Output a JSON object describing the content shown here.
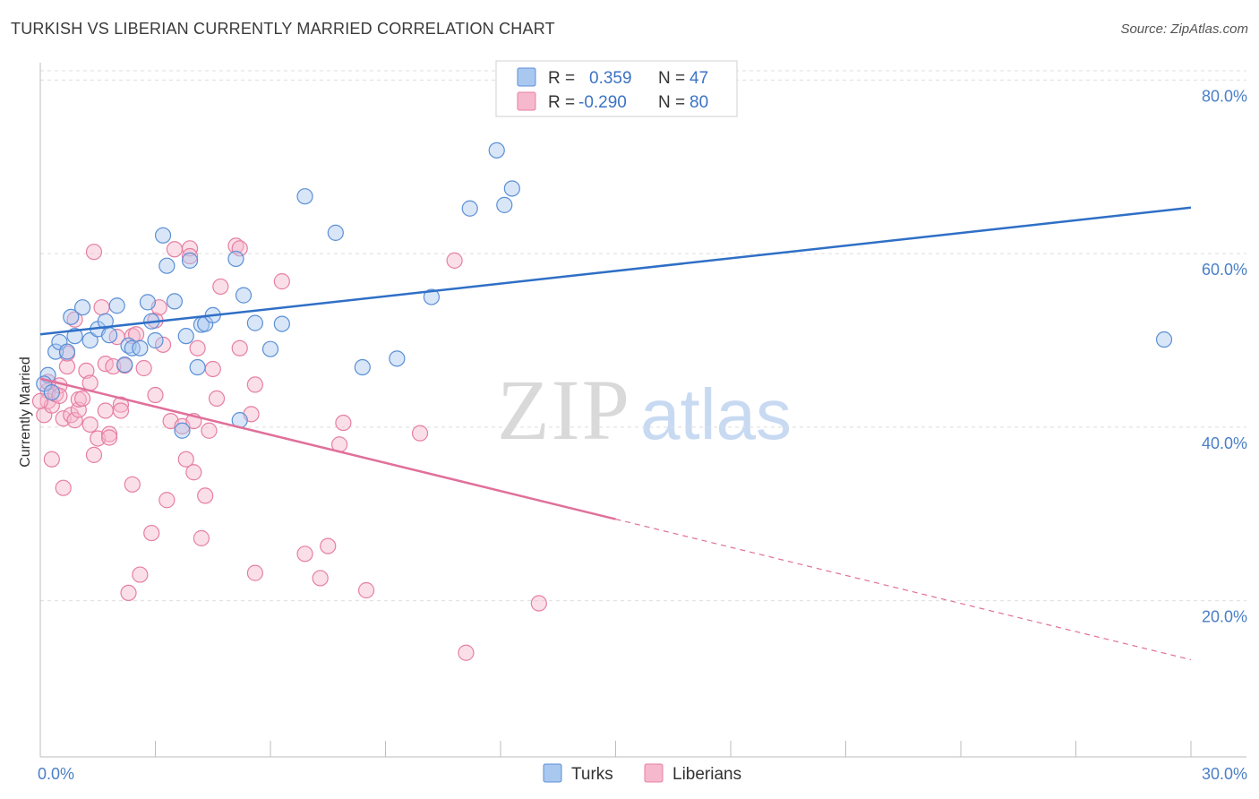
{
  "title": "TURKISH VS LIBERIAN CURRENTLY MARRIED CORRELATION CHART",
  "source": "Source: ZipAtlas.com",
  "watermark": {
    "zip": "ZIP",
    "atlas": "atlas"
  },
  "colors": {
    "turks_fill": "#a9c8f0",
    "turks_stroke": "#5b8fd6",
    "turks_line": "#2f6fc6",
    "lib_fill": "#f6b8cc",
    "lib_stroke": "#e67fa3",
    "lib_line": "#e0709a",
    "tick_color": "#4a7fc7"
  },
  "legend": {
    "rows": [
      {
        "r_label": "R =",
        "r_value": "0.359",
        "n_label": "N =",
        "n_value": "47"
      },
      {
        "r_label": "R =",
        "r_value": "-0.290",
        "n_label": "N =",
        "n_value": "80"
      }
    ]
  },
  "bottom_legend": [
    "Turks",
    "Liberians"
  ],
  "chart_data": {
    "type": "scatter",
    "title": "TURKISH VS LIBERIAN CURRENTLY MARRIED CORRELATION CHART",
    "xlabel": "",
    "ylabel": "Currently Married",
    "xlim": [
      0,
      30
    ],
    "ylim": [
      2,
      82
    ],
    "x_tick_labels": [
      "0.0%",
      "30.0%"
    ],
    "y_tick_labels": [
      "20.0%",
      "40.0%",
      "60.0%",
      "80.0%"
    ],
    "y_ticks": [
      20,
      40,
      60,
      80
    ],
    "grid": true,
    "legend_position": "top-center",
    "series": [
      {
        "name": "Turks",
        "r": 0.359,
        "n": 47,
        "trend": {
          "x": [
            0,
            30
          ],
          "y": [
            50.7,
            65.3
          ]
        },
        "points": [
          [
            0.2,
            46.0
          ],
          [
            0.4,
            48.7
          ],
          [
            0.5,
            49.8
          ],
          [
            0.7,
            48.7
          ],
          [
            0.8,
            52.7
          ],
          [
            0.9,
            50.5
          ],
          [
            1.1,
            53.8
          ],
          [
            1.3,
            50.0
          ],
          [
            1.5,
            51.3
          ],
          [
            1.7,
            52.2
          ],
          [
            1.8,
            50.6
          ],
          [
            2.0,
            54.0
          ],
          [
            2.2,
            47.2
          ],
          [
            2.3,
            49.4
          ],
          [
            2.4,
            49.1
          ],
          [
            2.6,
            49.1
          ],
          [
            2.8,
            54.4
          ],
          [
            2.9,
            52.2
          ],
          [
            3.0,
            50.0
          ],
          [
            3.2,
            62.1
          ],
          [
            3.3,
            58.6
          ],
          [
            3.5,
            54.5
          ],
          [
            3.7,
            39.6
          ],
          [
            3.8,
            50.5
          ],
          [
            3.9,
            59.2
          ],
          [
            4.1,
            46.9
          ],
          [
            4.2,
            51.8
          ],
          [
            4.3,
            51.9
          ],
          [
            4.5,
            52.9
          ],
          [
            5.1,
            59.4
          ],
          [
            5.2,
            40.8
          ],
          [
            5.3,
            55.2
          ],
          [
            5.6,
            52.0
          ],
          [
            6.0,
            49.0
          ],
          [
            6.3,
            51.9
          ],
          [
            6.9,
            66.6
          ],
          [
            7.7,
            62.4
          ],
          [
            8.4,
            46.9
          ],
          [
            9.3,
            47.9
          ],
          [
            10.2,
            55.0
          ],
          [
            11.2,
            65.2
          ],
          [
            11.9,
            71.9
          ],
          [
            12.1,
            65.6
          ],
          [
            12.3,
            67.5
          ],
          [
            29.3,
            50.1
          ],
          [
            0.1,
            45.0
          ],
          [
            0.3,
            44.0
          ]
        ]
      },
      {
        "name": "Liberians",
        "r": -0.29,
        "n": 80,
        "trend": {
          "x": [
            0,
            15
          ],
          "y": [
            45.6,
            29.4
          ]
        },
        "trend_dashed": {
          "x": [
            15,
            30
          ],
          "y": [
            29.4,
            13.2
          ]
        },
        "points": [
          [
            0.1,
            41.4
          ],
          [
            0.2,
            44.2
          ],
          [
            0.2,
            43.0
          ],
          [
            0.3,
            42.5
          ],
          [
            0.3,
            36.3
          ],
          [
            0.4,
            43.8
          ],
          [
            0.5,
            44.8
          ],
          [
            0.6,
            41.0
          ],
          [
            0.6,
            33.0
          ],
          [
            0.7,
            47.0
          ],
          [
            0.7,
            48.5
          ],
          [
            0.8,
            41.4
          ],
          [
            0.9,
            40.8
          ],
          [
            0.9,
            52.4
          ],
          [
            1.0,
            42.0
          ],
          [
            1.0,
            43.2
          ],
          [
            1.1,
            43.3
          ],
          [
            1.2,
            46.5
          ],
          [
            1.3,
            40.3
          ],
          [
            1.3,
            45.1
          ],
          [
            1.4,
            36.8
          ],
          [
            1.4,
            60.2
          ],
          [
            1.5,
            38.7
          ],
          [
            1.6,
            53.8
          ],
          [
            1.7,
            41.9
          ],
          [
            1.7,
            47.3
          ],
          [
            1.8,
            39.2
          ],
          [
            1.8,
            38.8
          ],
          [
            1.9,
            47.0
          ],
          [
            2.0,
            50.4
          ],
          [
            2.1,
            42.6
          ],
          [
            2.1,
            41.9
          ],
          [
            2.2,
            47.1
          ],
          [
            2.3,
            20.9
          ],
          [
            2.4,
            33.4
          ],
          [
            2.4,
            50.5
          ],
          [
            2.5,
            50.7
          ],
          [
            2.6,
            23.0
          ],
          [
            2.7,
            46.8
          ],
          [
            2.9,
            27.8
          ],
          [
            3.0,
            52.3
          ],
          [
            3.0,
            43.7
          ],
          [
            3.1,
            53.8
          ],
          [
            3.2,
            49.5
          ],
          [
            3.3,
            31.6
          ],
          [
            3.4,
            40.7
          ],
          [
            3.5,
            60.5
          ],
          [
            3.7,
            40.1
          ],
          [
            3.8,
            36.3
          ],
          [
            3.9,
            60.6
          ],
          [
            3.9,
            59.7
          ],
          [
            4.0,
            34.8
          ],
          [
            4.0,
            40.7
          ],
          [
            4.1,
            49.1
          ],
          [
            4.2,
            27.2
          ],
          [
            4.3,
            32.1
          ],
          [
            4.4,
            39.6
          ],
          [
            4.5,
            46.7
          ],
          [
            4.6,
            43.3
          ],
          [
            4.7,
            56.2
          ],
          [
            5.1,
            60.9
          ],
          [
            5.2,
            49.1
          ],
          [
            5.2,
            60.6
          ],
          [
            5.5,
            41.5
          ],
          [
            5.6,
            44.9
          ],
          [
            5.6,
            23.2
          ],
          [
            6.3,
            56.8
          ],
          [
            6.9,
            25.4
          ],
          [
            7.3,
            22.6
          ],
          [
            7.5,
            26.3
          ],
          [
            7.8,
            38.0
          ],
          [
            7.9,
            40.5
          ],
          [
            8.5,
            21.2
          ],
          [
            9.9,
            39.3
          ],
          [
            10.8,
            59.2
          ],
          [
            11.1,
            14.0
          ],
          [
            13.0,
            19.7
          ],
          [
            0.0,
            43.0
          ],
          [
            0.2,
            45.2
          ],
          [
            0.5,
            43.6
          ]
        ]
      }
    ]
  }
}
